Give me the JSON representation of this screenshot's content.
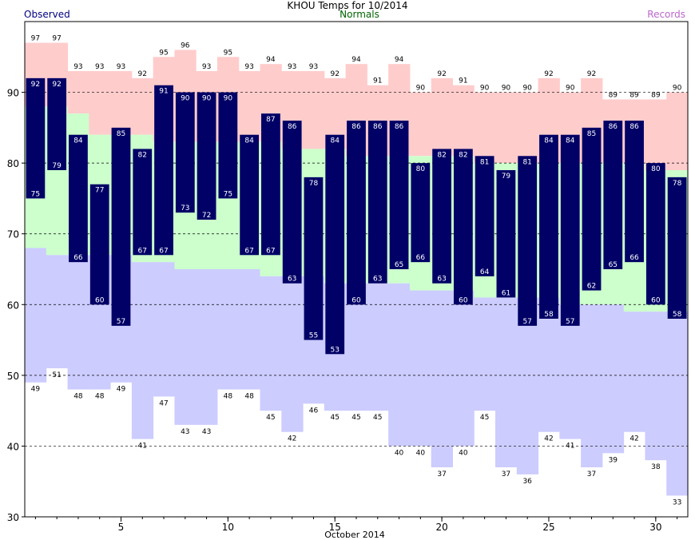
{
  "chart_data": {
    "type": "bar",
    "title": "KHOU Temps for 10/2014",
    "xlabel": "October 2014",
    "ylabel": "",
    "legend": {
      "observed": "Observed",
      "normals": "Normals",
      "records": "Records"
    },
    "ylim": [
      30,
      100
    ],
    "xlim": [
      0.5,
      31.5
    ],
    "yticks": [
      30,
      40,
      50,
      60,
      70,
      80,
      90
    ],
    "xticks": [
      5,
      10,
      15,
      20,
      25,
      30
    ],
    "grid": "horizontal dashed at 40, 50, 60, 70, 80, 90",
    "days": [
      1,
      2,
      3,
      4,
      5,
      6,
      7,
      8,
      9,
      10,
      11,
      12,
      13,
      14,
      15,
      16,
      17,
      18,
      19,
      20,
      21,
      22,
      23,
      24,
      25,
      26,
      27,
      28,
      29,
      30,
      31
    ],
    "record_high": [
      97,
      97,
      93,
      93,
      93,
      92,
      95,
      96,
      93,
      95,
      93,
      94,
      93,
      93,
      92,
      94,
      91,
      94,
      90,
      92,
      91,
      90,
      90,
      90,
      92,
      90,
      92,
      89,
      89,
      89,
      90
    ],
    "record_low": [
      49,
      51,
      48,
      48,
      49,
      41,
      47,
      43,
      43,
      48,
      48,
      45,
      42,
      46,
      45,
      45,
      45,
      40,
      40,
      37,
      40,
      45,
      37,
      36,
      42,
      41,
      37,
      39,
      42,
      38,
      33
    ],
    "normal_high": [
      88,
      88,
      87,
      84,
      84,
      84,
      83,
      83,
      83,
      83,
      83,
      83,
      82,
      82,
      82,
      81,
      81,
      81,
      81,
      81,
      81,
      80,
      80,
      80,
      80,
      80,
      80,
      80,
      80,
      79,
      79
    ],
    "normal_low": [
      68,
      67,
      67,
      67,
      67,
      66,
      66,
      65,
      65,
      65,
      65,
      64,
      64,
      64,
      63,
      63,
      63,
      63,
      62,
      62,
      62,
      61,
      61,
      61,
      61,
      60,
      60,
      60,
      59,
      59,
      59
    ],
    "observed_high": [
      92,
      92,
      84,
      77,
      85,
      82,
      91,
      90,
      90,
      90,
      84,
      87,
      86,
      78,
      84,
      86,
      86,
      86,
      80,
      82,
      82,
      81,
      79,
      81,
      84,
      84,
      85,
      86,
      86,
      80,
      78
    ],
    "observed_low": [
      75,
      79,
      66,
      60,
      57,
      67,
      67,
      73,
      72,
      75,
      67,
      67,
      63,
      55,
      53,
      60,
      63,
      65,
      66,
      63,
      60,
      64,
      61,
      57,
      58,
      57,
      62,
      65,
      66,
      60,
      58
    ]
  },
  "colors": {
    "records_band": "#ffcccc",
    "normals_band": "#ccffcc",
    "lows_band": "#ccccff",
    "observed_bar": "#000066",
    "observed_label": "#ffffff",
    "grid": "#000000"
  }
}
